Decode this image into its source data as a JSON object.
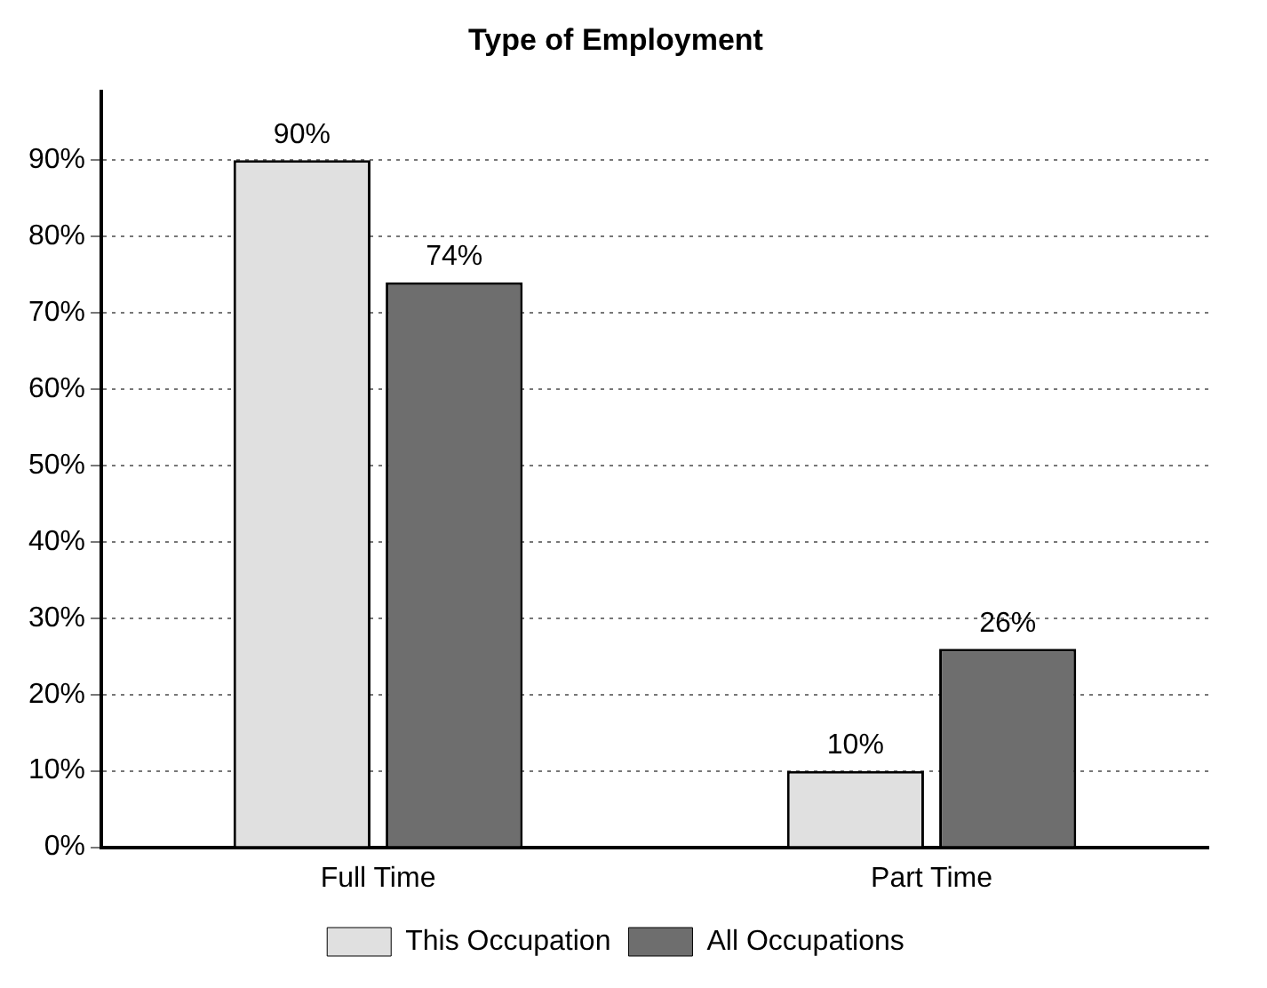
{
  "chart_data": {
    "type": "bar",
    "title": "Type of Employment",
    "categories": [
      "Full Time",
      "Part Time"
    ],
    "series": [
      {
        "name": "This Occupation",
        "color": "#e0e0e0",
        "values": [
          90,
          10
        ],
        "value_labels": [
          "90%",
          "10%"
        ]
      },
      {
        "name": "All Occupations",
        "color": "#6e6e6e",
        "values": [
          74,
          26
        ],
        "value_labels": [
          "74%",
          "26%"
        ]
      }
    ],
    "ylim": [
      0,
      99
    ],
    "yticks": [
      {
        "value": 0,
        "label": "0%"
      },
      {
        "value": 10,
        "label": "10%"
      },
      {
        "value": 20,
        "label": "20%"
      },
      {
        "value": 30,
        "label": "30%"
      },
      {
        "value": 40,
        "label": "40%"
      },
      {
        "value": 50,
        "label": "50%"
      },
      {
        "value": 60,
        "label": "60%"
      },
      {
        "value": 70,
        "label": "70%"
      },
      {
        "value": 80,
        "label": "80%"
      },
      {
        "value": 90,
        "label": "90%"
      }
    ],
    "grid": "y",
    "legend": "bottom"
  }
}
